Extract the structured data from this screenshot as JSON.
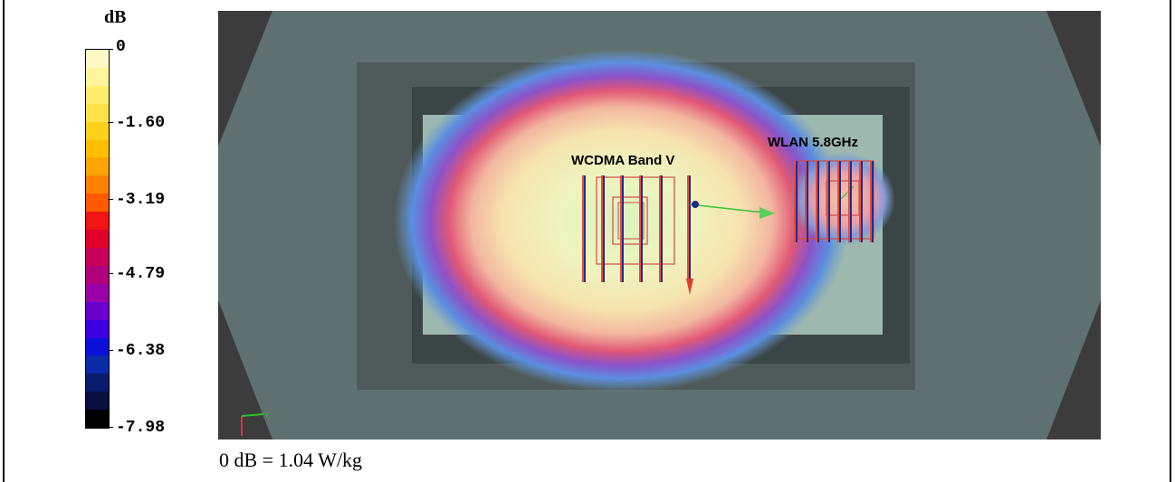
{
  "colorbar": {
    "unit": "dB",
    "tick_labels": [
      "0",
      "-1.60",
      "-3.19",
      "-4.79",
      "-6.38",
      "-7.98"
    ],
    "colors": [
      "#fff9c4",
      "#fff59d",
      "#ffee6e",
      "#ffe14a",
      "#ffd21a",
      "#ffbe00",
      "#ffa400",
      "#ff8200",
      "#ff5a00",
      "#f01414",
      "#e0002a",
      "#c8005a",
      "#b0007c",
      "#9a00a8",
      "#6a00cc",
      "#3c00e0",
      "#0a10d8",
      "#0a2aa8",
      "#0a1c6e",
      "#081040",
      "#000000"
    ]
  },
  "plot": {
    "antenna_labels": [
      "WCDMA Band V",
      "WLAN 5.8GHz"
    ],
    "colors": {
      "background": "#3c3c3c",
      "phantom": "#5e7070",
      "inner_frame": "#4e5a5a",
      "inner_dark": "#3a4545",
      "scan_area": "#bfe0d3"
    }
  },
  "caption": "0 dB = 1.04 W/kg"
}
